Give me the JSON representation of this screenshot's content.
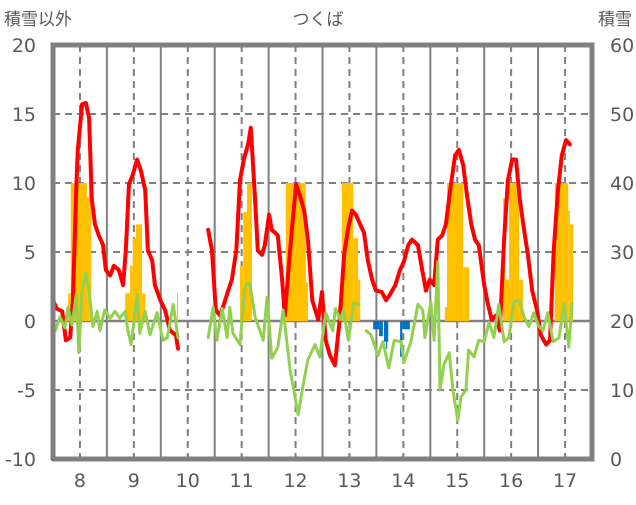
{
  "chart_data": {
    "type": "line",
    "title": "つくば",
    "ylabel_left": "積雪以外",
    "ylabel_right": "積雪",
    "xlim": [
      7.5,
      17.5
    ],
    "ylim_left": [
      -10,
      20
    ],
    "ylim_right": [
      0,
      60
    ],
    "x_ticks": [
      "8",
      "9",
      "10",
      "11",
      "12",
      "13",
      "14",
      "15",
      "16",
      "17"
    ],
    "x_tick_values": [
      8,
      9,
      10,
      11,
      12,
      13,
      14,
      15,
      16,
      17
    ],
    "y_ticks_left": [
      "20",
      "15",
      "10",
      "5",
      "0",
      "-5",
      "-10"
    ],
    "y_tick_values_left": [
      20,
      15,
      10,
      5,
      0,
      -5,
      -10
    ],
    "y_ticks_right": [
      "60",
      "50",
      "40",
      "30",
      "20",
      "10",
      "0"
    ],
    "y_tick_values_right": [
      60,
      50,
      40,
      30,
      20,
      10,
      0
    ],
    "grid": true,
    "colors": {
      "red": "#ff0000",
      "green": "#92d050",
      "orange": "#ffc000",
      "blue": "#0070c0",
      "purple": "#7030a0",
      "frame": "#808080"
    },
    "series": [
      {
        "name": "red-line",
        "axis": "left",
        "color": "#ff0000",
        "x": [
          7.5,
          7.57,
          7.67,
          7.74,
          7.82,
          7.87,
          7.93,
          7.96,
          8.04,
          8.11,
          8.17,
          8.22,
          8.28,
          8.35,
          8.43,
          8.48,
          8.56,
          8.63,
          8.72,
          8.8,
          8.85,
          8.91,
          8.98,
          9.06,
          9.13,
          9.21,
          9.26,
          9.34,
          9.39,
          9.49,
          9.58,
          9.67,
          9.78,
          9.82,
          null,
          10.38,
          10.45,
          10.52,
          10.6,
          10.67,
          10.75,
          10.82,
          10.9,
          10.97,
          11.04,
          11.12,
          11.17,
          11.25,
          11.3,
          11.38,
          11.43,
          11.51,
          11.56,
          11.62,
          11.67,
          11.75,
          11.8,
          11.86,
          11.93,
          12.01,
          12.08,
          12.16,
          12.23,
          12.31,
          12.42,
          12.49,
          12.56,
          12.64,
          12.73,
          12.82,
          12.9,
          12.97,
          13.05,
          13.12,
          13.2,
          13.27,
          13.34,
          13.42,
          13.49,
          13.6,
          13.68,
          13.75,
          13.85,
          13.94,
          14.01,
          14.09,
          14.16,
          14.27,
          14.35,
          14.42,
          14.49,
          14.57,
          14.64,
          14.72,
          14.79,
          14.87,
          14.96,
          15.03,
          15.11,
          15.18,
          15.26,
          15.33,
          15.4,
          15.5,
          15.57,
          15.64,
          15.72,
          15.79,
          15.87,
          15.94,
          16.02,
          16.09,
          16.16,
          16.24,
          16.31,
          16.39,
          16.48,
          16.55,
          16.65,
          16.72,
          16.79,
          16.87,
          16.94,
          17.02,
          17.09
        ],
        "y": [
          1.5,
          0.9,
          0.7,
          -1.4,
          -1.2,
          1.5,
          9.5,
          12.4,
          15.7,
          15.8,
          14.7,
          8.8,
          7.0,
          6.2,
          5.5,
          3.7,
          3.3,
          4.0,
          3.7,
          2.6,
          5.1,
          9.9,
          10.6,
          11.7,
          10.9,
          9.5,
          5.1,
          4.4,
          2.6,
          1.5,
          0.8,
          -0.7,
          -1.0,
          -2.0,
          null,
          6.6,
          5.1,
          0.8,
          0.4,
          1.2,
          2.2,
          3.0,
          5.1,
          10.2,
          11.7,
          12.8,
          14.0,
          8.8,
          5.1,
          4.8,
          5.5,
          7.7,
          6.6,
          6.4,
          6.2,
          3.0,
          0.4,
          3.3,
          6.6,
          9.9,
          9.1,
          8.0,
          5.9,
          1.5,
          0.1,
          2.1,
          -1.4,
          -2.5,
          -3.2,
          0.1,
          4.8,
          6.6,
          8.0,
          7.7,
          7.0,
          6.4,
          4.4,
          3.0,
          2.2,
          2.1,
          1.5,
          1.9,
          2.6,
          3.7,
          4.3,
          5.5,
          5.9,
          5.5,
          3.7,
          2.2,
          3.0,
          2.6,
          5.9,
          6.2,
          7.0,
          9.5,
          12.0,
          12.4,
          11.3,
          9.1,
          7.0,
          5.9,
          5.5,
          2.6,
          1.2,
          0.1,
          0.4,
          -0.7,
          5.9,
          10.2,
          11.7,
          11.7,
          8.8,
          6.6,
          4.8,
          2.2,
          0.8,
          -1.0,
          -1.7,
          -1.4,
          5.1,
          9.5,
          12.0,
          13.1,
          12.8
        ]
      },
      {
        "name": "green-line",
        "axis": "left",
        "color": "#92d050",
        "x": [
          7.54,
          7.63,
          7.72,
          7.78,
          7.85,
          7.93,
          7.98,
          8.04,
          8.11,
          8.17,
          8.24,
          8.32,
          8.37,
          8.46,
          8.56,
          8.65,
          8.74,
          8.84,
          8.89,
          8.95,
          9.06,
          9.11,
          9.21,
          9.3,
          9.43,
          9.54,
          9.62,
          9.73,
          9.82,
          null,
          10.38,
          10.47,
          10.54,
          10.64,
          10.73,
          10.78,
          10.84,
          10.97,
          11.06,
          11.15,
          11.25,
          11.4,
          11.47,
          11.56,
          11.67,
          11.77,
          11.9,
          11.99,
          12.05,
          12.12,
          12.23,
          12.36,
          12.45,
          12.56,
          12.69,
          12.74,
          12.83,
          12.89,
          12.98,
          13.08,
          13.18,
          null,
          13.31,
          13.4,
          13.53,
          13.62,
          13.73,
          13.83,
          13.96,
          14.01,
          14.14,
          14.27,
          14.36,
          14.4,
          14.51,
          14.57,
          14.64,
          14.68,
          14.75,
          14.85,
          14.92,
          15.01,
          15.07,
          15.16,
          15.21,
          15.31,
          15.4,
          15.5,
          15.59,
          15.68,
          15.77,
          15.87,
          15.96,
          16.05,
          16.15,
          16.24,
          16.33,
          16.42,
          16.5,
          16.59,
          16.68,
          16.78,
          16.89,
          16.98,
          17.07,
          17.13
        ],
        "y": [
          -0.7,
          0.3,
          -0.5,
          1.0,
          -0.3,
          1.9,
          -2.3,
          2.2,
          3.5,
          2.2,
          -0.4,
          0.7,
          -0.7,
          0.8,
          0.2,
          0.7,
          0.2,
          0.7,
          -0.7,
          -1.7,
          1.9,
          -0.9,
          0.7,
          -1.0,
          0.6,
          -1.4,
          -1.2,
          1.2,
          -1.2,
          null,
          -1.2,
          1.0,
          -1.4,
          0.9,
          -1.2,
          1.0,
          -0.9,
          -1.7,
          2.5,
          2.8,
          0.3,
          -1.4,
          1.7,
          -2.7,
          -1.9,
          0.8,
          -3.6,
          -5.5,
          -6.8,
          -5.1,
          -2.8,
          -1.7,
          -2.6,
          0.6,
          -0.7,
          0.9,
          0.1,
          0.8,
          -1.4,
          1.3,
          1.2,
          null,
          -0.7,
          -1.0,
          -2.5,
          -1.5,
          -3.4,
          -1.4,
          -1.5,
          -3.0,
          -1.5,
          1.2,
          0.8,
          -1.2,
          1.4,
          -1.4,
          4.3,
          -5.0,
          -3.2,
          -2.3,
          -5.0,
          -7.2,
          -5.5,
          -5.0,
          -2.1,
          -2.6,
          -1.4,
          -1.5,
          -0.1,
          -1.2,
          1.2,
          -1.5,
          -1.2,
          1.4,
          1.5,
          0.3,
          -0.4,
          0.6,
          -0.3,
          -0.7,
          0.6,
          -1.5,
          -1.2,
          1.3,
          -1.9,
          1.3
        ]
      },
      {
        "name": "snow-depth-line",
        "axis": "right",
        "color": "#7030a0",
        "x": [
          7.5,
          9.82,
          null,
          10.36,
          17.15
        ],
        "y": [
          0,
          0,
          null,
          0,
          0
        ]
      }
    ],
    "bars": [
      {
        "name": "orange-bars",
        "axis": "left",
        "color": "#ffc000",
        "ranges": [
          [
            7.78,
            7.83,
            2.0
          ],
          [
            7.83,
            8.13,
            10
          ],
          [
            8.13,
            8.17,
            9.0
          ],
          [
            8.17,
            8.21,
            10
          ],
          [
            8.84,
            8.93,
            2.0
          ],
          [
            8.93,
            8.98,
            4.0
          ],
          [
            8.98,
            9.04,
            6.0
          ],
          [
            9.04,
            9.15,
            7.0
          ],
          [
            9.15,
            9.21,
            2.0
          ],
          [
            9.8,
            9.82,
            2.0
          ],
          [
            10.97,
            11.03,
            4.0
          ],
          [
            11.03,
            11.1,
            7.9
          ],
          [
            11.1,
            11.19,
            10
          ],
          [
            11.82,
            12.19,
            10
          ],
          [
            12.19,
            12.23,
            2.8
          ],
          [
            12.79,
            12.86,
            1.0
          ],
          [
            12.86,
            13.07,
            10
          ],
          [
            13.07,
            13.16,
            6.0
          ],
          [
            13.16,
            13.2,
            3.0
          ],
          [
            14.77,
            14.81,
            1.0
          ],
          [
            14.81,
            15.11,
            10
          ],
          [
            15.11,
            15.22,
            3.9
          ],
          [
            15.85,
            15.89,
            8.9
          ],
          [
            15.89,
            15.96,
            3.0
          ],
          [
            15.96,
            16.15,
            10
          ],
          [
            16.15,
            16.22,
            3.0
          ],
          [
            16.81,
            17.06,
            10
          ],
          [
            17.06,
            17.09,
            8.0
          ],
          [
            17.09,
            17.15,
            7.0
          ]
        ]
      },
      {
        "name": "blue-bars",
        "axis": "left",
        "color": "#0070c0",
        "ranges": [
          [
            13.44,
            13.55,
            -0.6
          ],
          [
            13.55,
            13.62,
            -1.1
          ],
          [
            13.64,
            13.72,
            -1.5
          ],
          [
            13.68,
            13.7,
            -2.0
          ],
          [
            13.94,
            13.98,
            -2.6
          ],
          [
            13.98,
            14.12,
            -0.6
          ]
        ]
      }
    ]
  }
}
